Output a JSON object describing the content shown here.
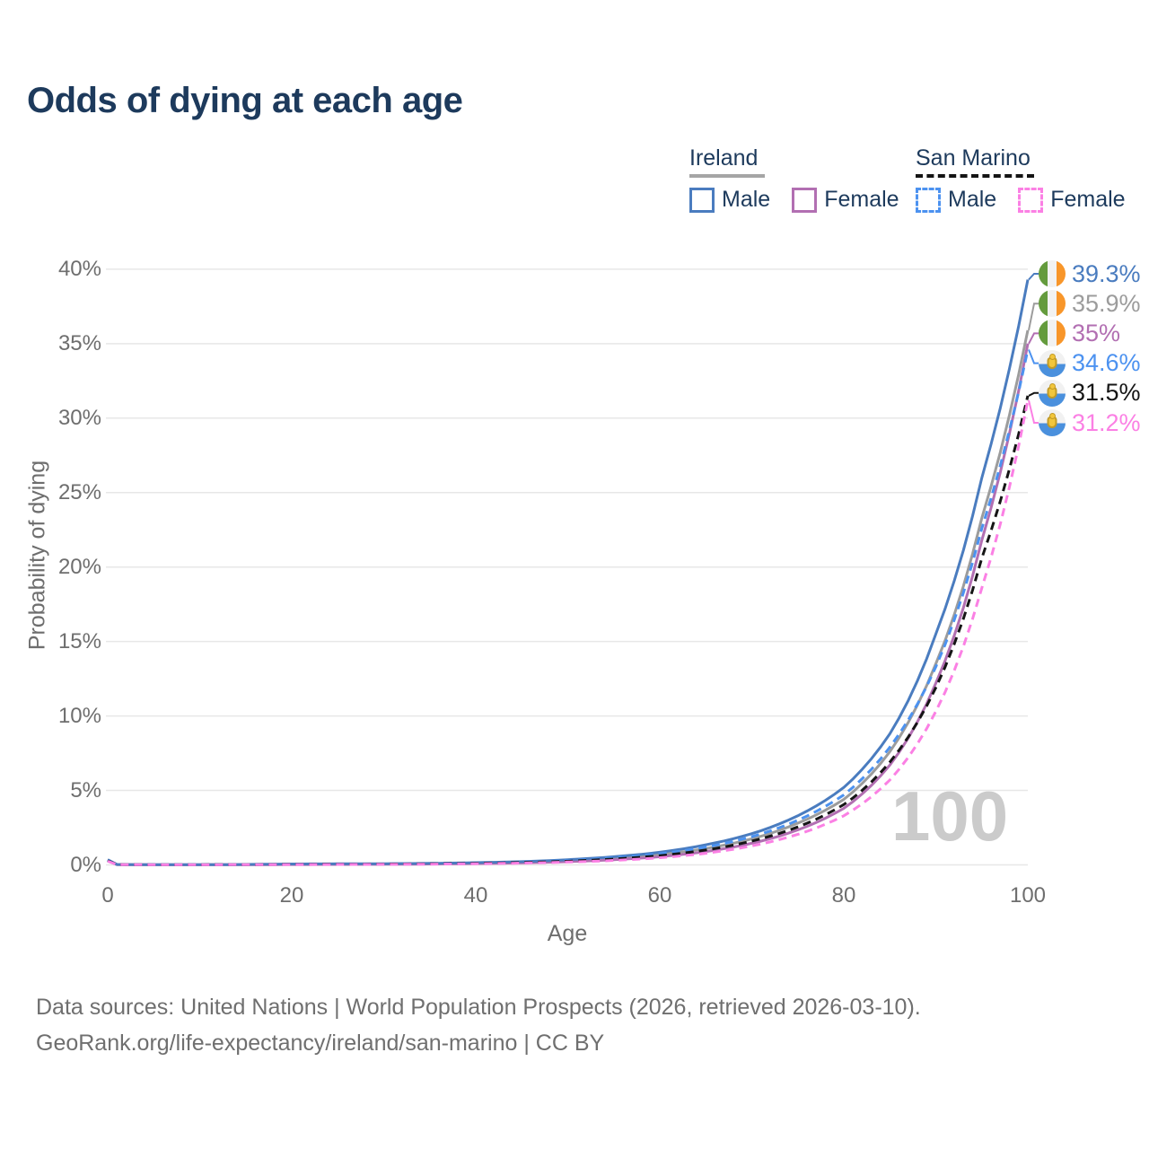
{
  "title": "Odds of dying at each age",
  "legend": {
    "groups": [
      {
        "name": "Ireland",
        "line_style": "solid",
        "underline_color": "#a5a5a5",
        "items": [
          {
            "label": "Male",
            "color": "#4a7cbf"
          },
          {
            "label": "Female",
            "color": "#b26fb2"
          }
        ]
      },
      {
        "name": "San Marino",
        "line_style": "dashed",
        "underline_color": "#141414",
        "items": [
          {
            "label": "Male",
            "color": "#4c92f0"
          },
          {
            "label": "Female",
            "color": "#fb80e4"
          }
        ]
      }
    ]
  },
  "axes": {
    "x": {
      "title": "Age",
      "ticks": [
        "0",
        "20",
        "40",
        "60",
        "80",
        "100"
      ],
      "range": [
        0,
        100
      ]
    },
    "y": {
      "title": "Probability of dying",
      "ticks": [
        "40%",
        "35%",
        "30%",
        "25%",
        "20%",
        "15%",
        "10%",
        "5%",
        "0%"
      ],
      "range": [
        0,
        40
      ]
    }
  },
  "watermark": "100",
  "end_labels": [
    {
      "id": "ireland-male",
      "flag": "ireland",
      "value": "39.3%",
      "color": "#4a7cbf"
    },
    {
      "id": "ireland-both",
      "flag": "ireland",
      "value": "35.9%",
      "color": "#9c9c9c"
    },
    {
      "id": "ireland-female",
      "flag": "ireland",
      "value": "35%",
      "color": "#b26fb2"
    },
    {
      "id": "san-marino-male",
      "flag": "san-marino",
      "value": "34.6%",
      "color": "#4c92f0"
    },
    {
      "id": "san-marino-both",
      "flag": "san-marino",
      "value": "31.5%",
      "color": "#151515"
    },
    {
      "id": "san-marino-female",
      "flag": "san-marino",
      "value": "31.2%",
      "color": "#fb80e4"
    }
  ],
  "footer": {
    "line1": "Data sources: United Nations | World Population Prospects (2026, retrieved 2026-03-10).",
    "line2": "GeoRank.org/life-expectancy/ireland/san-marino | CC BY"
  },
  "chart_data": {
    "type": "line",
    "title": "Odds of dying at each age",
    "xlabel": "Age",
    "ylabel": "Probability of dying",
    "xlim": [
      0,
      100
    ],
    "ylim": [
      0,
      40
    ],
    "grid": "horizontal",
    "legend_position": "top-right",
    "x": [
      0,
      1,
      5,
      10,
      15,
      20,
      25,
      30,
      35,
      40,
      45,
      50,
      55,
      60,
      65,
      70,
      75,
      80,
      85,
      90,
      95,
      100
    ],
    "series": [
      {
        "name": "Ireland Male",
        "style": "solid",
        "color": "#4a7cbf",
        "values": [
          0.35,
          0.03,
          0.01,
          0.01,
          0.03,
          0.06,
          0.07,
          0.08,
          0.1,
          0.15,
          0.22,
          0.35,
          0.55,
          0.85,
          1.35,
          2.1,
          3.3,
          5.2,
          8.8,
          15.5,
          26.0,
          39.3
        ]
      },
      {
        "name": "Ireland Both sexes",
        "style": "solid",
        "color": "#9c9c9c",
        "values": [
          0.3,
          0.025,
          0.009,
          0.009,
          0.02,
          0.04,
          0.05,
          0.06,
          0.08,
          0.12,
          0.18,
          0.28,
          0.45,
          0.7,
          1.1,
          1.75,
          2.8,
          4.4,
          7.6,
          13.5,
          23.3,
          35.9
        ]
      },
      {
        "name": "Ireland Female",
        "style": "solid",
        "color": "#b26fb2",
        "values": [
          0.27,
          0.02,
          0.008,
          0.008,
          0.015,
          0.025,
          0.03,
          0.04,
          0.06,
          0.09,
          0.14,
          0.22,
          0.35,
          0.55,
          0.9,
          1.45,
          2.35,
          3.8,
          6.7,
          12.2,
          21.8,
          35.0
        ]
      },
      {
        "name": "San Marino Male",
        "style": "dashed",
        "color": "#4c92f0",
        "values": [
          0.3,
          0.025,
          0.009,
          0.009,
          0.02,
          0.045,
          0.055,
          0.065,
          0.085,
          0.13,
          0.19,
          0.3,
          0.48,
          0.75,
          1.2,
          1.9,
          3.0,
          4.7,
          7.9,
          13.3,
          22.6,
          34.6
        ]
      },
      {
        "name": "San Marino Both sexes",
        "style": "dashed",
        "color": "#151515",
        "values": [
          0.28,
          0.022,
          0.008,
          0.008,
          0.018,
          0.035,
          0.045,
          0.055,
          0.07,
          0.11,
          0.16,
          0.25,
          0.4,
          0.62,
          1.0,
          1.6,
          2.55,
          4.05,
          6.9,
          11.9,
          20.6,
          31.5
        ]
      },
      {
        "name": "San Marino Female",
        "style": "dashed",
        "color": "#fb80e4",
        "values": [
          0.25,
          0.02,
          0.007,
          0.007,
          0.013,
          0.022,
          0.028,
          0.035,
          0.05,
          0.08,
          0.12,
          0.19,
          0.3,
          0.48,
          0.78,
          1.28,
          2.05,
          3.3,
          5.7,
          10.3,
          18.6,
          31.2
        ]
      }
    ],
    "end_values": {
      "Ireland Male": 39.3,
      "Ireland Both sexes": 35.9,
      "Ireland Female": 35.0,
      "San Marino Male": 34.6,
      "San Marino Both sexes": 31.5,
      "San Marino Female": 31.2
    }
  }
}
